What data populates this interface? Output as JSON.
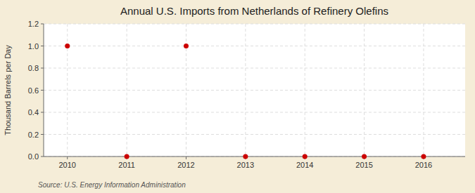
{
  "chart_data": {
    "type": "scatter",
    "title": "Annual U.S. Imports from Netherlands of Refinery Olefins",
    "y_label": "Thousand Barrels per Day",
    "annotations": [
      "Source: U.S. Energy Information Administration"
    ],
    "x": [
      2010,
      2011,
      2012,
      2013,
      2014,
      2015,
      2016
    ],
    "values": [
      1.0,
      0.0,
      1.0,
      0.0,
      0.0,
      0.0,
      0.0
    ],
    "color": "#CC0000",
    "xlim": [
      2009.6,
      2016.7
    ],
    "xticks": [
      2010,
      2011,
      2012,
      2013,
      2014,
      2015,
      2016
    ],
    "ylim": [
      0.0,
      1.2
    ],
    "yticks": [
      {
        "value": 0.0,
        "label": "0.0"
      },
      {
        "value": 0.2,
        "label": "0.2"
      },
      {
        "value": 0.4,
        "label": "0.4"
      },
      {
        "value": 0.6,
        "label": "0.6"
      },
      {
        "value": 0.8,
        "label": "0.8"
      },
      {
        "value": 1.0,
        "label": "1.0"
      },
      {
        "value": 1.2,
        "label": "1.2"
      }
    ],
    "grid": true
  }
}
